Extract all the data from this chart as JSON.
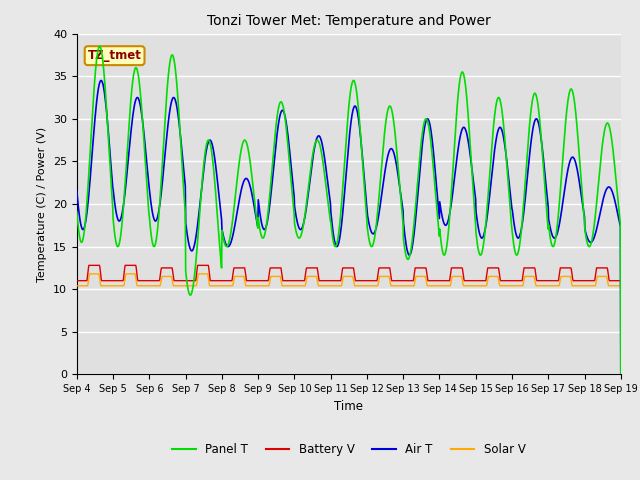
{
  "title": "Tonzi Tower Met: Temperature and Power",
  "xlabel": "Time",
  "ylabel": "Temperature (C) / Power (V)",
  "xlim": [
    0,
    15
  ],
  "ylim": [
    0,
    40
  ],
  "yticks": [
    0,
    5,
    10,
    15,
    20,
    25,
    30,
    35,
    40
  ],
  "xtick_labels": [
    "Sep 4",
    "Sep 5",
    "Sep 6",
    "Sep 7",
    "Sep 8",
    "Sep 9",
    "Sep 10",
    "Sep 11",
    "Sep 12",
    "Sep 13",
    "Sep 14",
    "Sep 15",
    "Sep 16",
    "Sep 17",
    "Sep 18",
    "Sep 19"
  ],
  "annotation_text": "TZ_tmet",
  "bg_color": "#e0e0e0",
  "fig_color": "#e8e8e8",
  "grid_color": "#ffffff",
  "line_colors": {
    "panel_t": "#00dd00",
    "battery_v": "#dd0000",
    "air_t": "#0000dd",
    "solar_v": "#ffaa00"
  },
  "legend_labels": [
    "Panel T",
    "Battery V",
    "Air T",
    "Solar V"
  ],
  "panel_t_data": [
    19.0,
    30.0,
    38.5,
    27.0,
    16.0,
    15.5,
    36.0,
    21.0,
    15.0,
    30.0,
    37.5,
    18.0,
    15.0,
    27.5,
    21.0,
    20.5,
    27.5,
    9.3,
    27.5,
    32.0,
    16.0,
    27.5,
    16.0,
    34.5,
    15.0,
    31.5,
    15.0,
    30.0,
    13.5,
    35.5,
    14.0,
    32.5,
    14.0,
    33.0,
    14.0,
    33.5,
    15.0,
    29.5
  ],
  "air_t_data": [
    18.0,
    22.5,
    34.5,
    21.0,
    17.5,
    17.0,
    32.5,
    18.0,
    18.0,
    27.5,
    32.5,
    20.0,
    19.0,
    23.0,
    20.0,
    20.0,
    23.0,
    14.5,
    28.0,
    31.0,
    17.0,
    28.0,
    17.0,
    31.5,
    15.0,
    26.5,
    16.5,
    30.0,
    14.0,
    29.0,
    17.5,
    29.0,
    16.0,
    30.0,
    16.0,
    25.5,
    16.0,
    22.0
  ],
  "battery_v_base": 11.0,
  "battery_v_day_peaks": [
    12.8,
    12.8,
    12.5,
    12.8,
    12.5,
    12.5,
    12.5,
    12.5,
    12.5,
    12.5,
    12.5,
    12.5,
    12.5,
    12.5,
    12.5
  ],
  "solar_v_base": 10.4,
  "solar_v_day_peaks": [
    11.8,
    11.8,
    11.5,
    11.8,
    11.5,
    11.5,
    11.5,
    11.5,
    11.5,
    11.5,
    11.5,
    11.5,
    11.5,
    11.5,
    11.5
  ]
}
